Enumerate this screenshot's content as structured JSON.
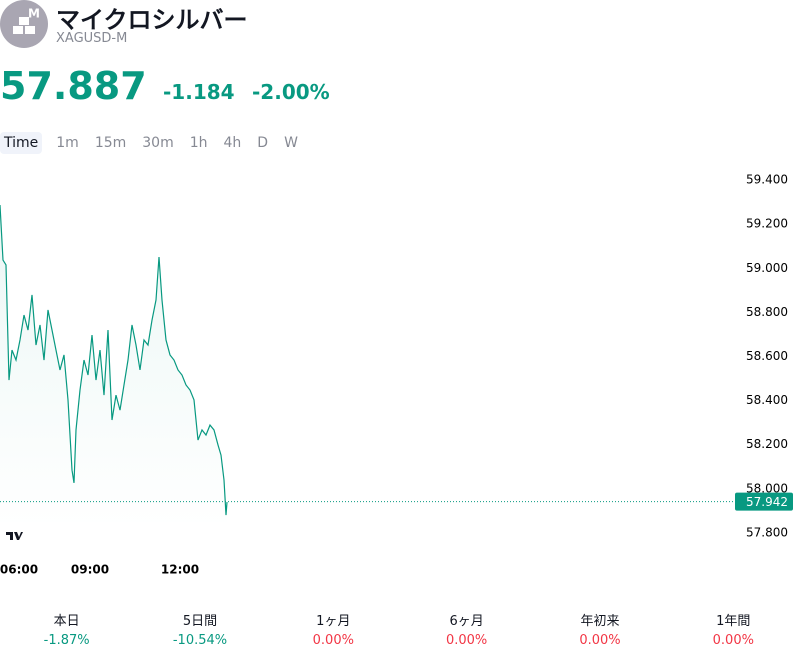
{
  "header": {
    "badge": "M",
    "title": "マイクロシルバー",
    "symbol": "XAGUSD-M",
    "price": "57.887",
    "change": "-1.184",
    "change_percent": "-2.00%"
  },
  "timeframes": [
    "Time",
    "1m",
    "15m",
    "30m",
    "1h",
    "4h",
    "D",
    "W"
  ],
  "chart_data": {
    "type": "line",
    "color": "#089981",
    "x": [
      360,
      366,
      372,
      378,
      384,
      392,
      400,
      408,
      416,
      424,
      432,
      440,
      448,
      456,
      464,
      472,
      480,
      488,
      496,
      504,
      508,
      512,
      520,
      528,
      536,
      544,
      552,
      560,
      568,
      576,
      584,
      592,
      600,
      608,
      616,
      624,
      632,
      640,
      648,
      656,
      664,
      672,
      678,
      684,
      692,
      700,
      708,
      716,
      724,
      732,
      740,
      748,
      756,
      764,
      772,
      780,
      788,
      796,
      802,
      808,
      812,
      814
    ],
    "series": [
      {
        "name": "XAGUSD-M",
        "color": "#089981",
        "values": [
          59.287,
          59.037,
          59.015,
          58.493,
          58.629,
          58.584,
          58.675,
          58.788,
          58.72,
          58.879,
          58.652,
          58.743,
          58.584,
          58.811,
          58.72,
          58.629,
          58.539,
          58.607,
          58.403,
          58.085,
          58.027,
          58.267,
          58.448,
          58.584,
          58.516,
          58.697,
          58.493,
          58.629,
          58.425,
          58.72,
          58.312,
          58.425,
          58.357,
          58.471,
          58.584,
          58.743,
          58.652,
          58.539,
          58.675,
          58.652,
          58.765,
          58.856,
          59.051,
          58.856,
          58.675,
          58.607,
          58.584,
          58.539,
          58.516,
          58.471,
          58.448,
          58.403,
          58.221,
          58.267,
          58.244,
          58.289,
          58.267,
          58.199,
          58.153,
          58.04,
          57.881,
          57.94
        ]
      }
    ],
    "last_value": 57.942,
    "xlim": [
      360,
      1820
    ],
    "xticks": [
      {
        "value": 360,
        "label": "06:00"
      },
      {
        "value": 540,
        "label": "09:00"
      },
      {
        "value": 720,
        "label": "12:00"
      }
    ],
    "ylim": [
      57.7,
      59.5
    ],
    "yticks": [
      {
        "value": 57.8,
        "label": "57.800"
      },
      {
        "value": 58.0,
        "label": "58.000"
      },
      {
        "value": 58.2,
        "label": "58.200"
      },
      {
        "value": 58.4,
        "label": "58.400"
      },
      {
        "value": 58.6,
        "label": "58.600"
      },
      {
        "value": 58.8,
        "label": "58.800"
      },
      {
        "value": 59.0,
        "label": "59.000"
      },
      {
        "value": 59.2,
        "label": "59.200"
      },
      {
        "value": 59.4,
        "label": "59.400"
      }
    ]
  },
  "performance": [
    {
      "period": "本日",
      "value": "-1.87%"
    },
    {
      "period": "5日間",
      "value": "-10.54%"
    },
    {
      "period": "1ヶ月",
      "value": "0.00%"
    },
    {
      "period": "6ヶ月",
      "value": "0.00%"
    },
    {
      "period": "年初来",
      "value": "0.00%"
    },
    {
      "period": "1年間",
      "value": "0.00%"
    }
  ]
}
